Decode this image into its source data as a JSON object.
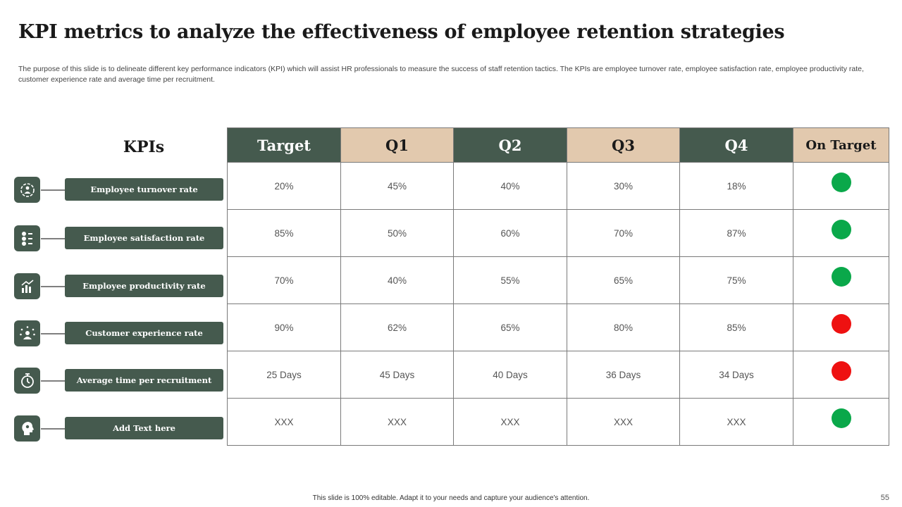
{
  "title": "KPI metrics to analyze the effectiveness of employee retention strategies",
  "description": "The purpose of this slide is to delineate different key performance indicators (KPI) which will assist HR professionals to measure the success of staff retention tactics. The KPIs are employee turnover rate, employee satisfaction rate, employee productivity rate, customer experience rate and average time per recruitment.",
  "kpis_heading": "KPIs",
  "kpis": [
    {
      "label": "Employee turnover rate",
      "icon": "people-cycle-icon"
    },
    {
      "label": "Employee satisfaction rate",
      "icon": "emoji-faces-icon"
    },
    {
      "label": "Employee productivity rate",
      "icon": "growth-chart-icon"
    },
    {
      "label": "Customer experience rate",
      "icon": "customer-stars-icon"
    },
    {
      "label": "Average time per recruitment",
      "icon": "stopwatch-icon"
    },
    {
      "label": "Add Text here",
      "icon": "head-idea-icon"
    }
  ],
  "table": {
    "headers": [
      "Target",
      "Q1",
      "Q2",
      "Q3",
      "Q4",
      "On Target"
    ],
    "rows": [
      {
        "cells": [
          "20%",
          "45%",
          "40%",
          "30%",
          "18%"
        ],
        "status": "green"
      },
      {
        "cells": [
          "85%",
          "50%",
          "60%",
          "70%",
          "87%"
        ],
        "status": "green"
      },
      {
        "cells": [
          "70%",
          "40%",
          "55%",
          "65%",
          "75%"
        ],
        "status": "green"
      },
      {
        "cells": [
          "90%",
          "62%",
          "65%",
          "80%",
          "85%"
        ],
        "status": "red"
      },
      {
        "cells": [
          "25 Days",
          "45 Days",
          "40 Days",
          "36 Days",
          "34 Days"
        ],
        "status": "red"
      },
      {
        "cells": [
          "XXX",
          "XXX",
          "XXX",
          "XXX",
          "XXX"
        ],
        "status": "green"
      }
    ]
  },
  "colors": {
    "header_dark": "#455a4e",
    "header_tan": "#e2c9ae",
    "status_green": "#0aa84a",
    "status_red": "#ee1111"
  },
  "footer": "This slide is 100% editable. Adapt it to your needs and capture your audience's attention.",
  "page_number": "55"
}
